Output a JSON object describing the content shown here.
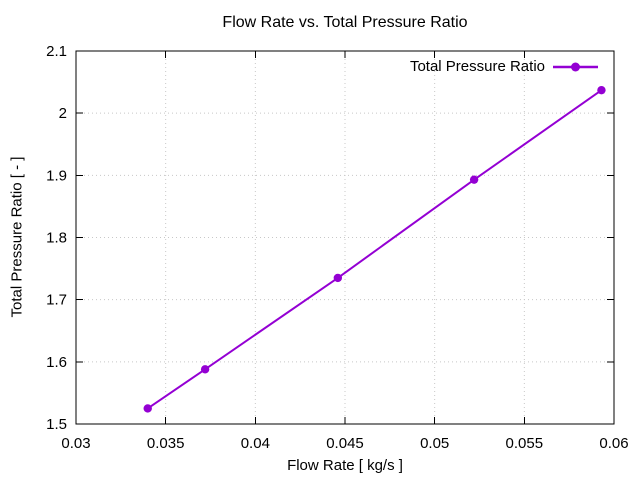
{
  "chart_data": {
    "type": "line",
    "title": "Flow Rate vs. Total Pressure Ratio",
    "xlabel": "Flow Rate [ kg/s ]",
    "ylabel": "Total Pressure Ratio [ - ]",
    "xlim": [
      0.03,
      0.06
    ],
    "ylim": [
      1.5,
      2.1
    ],
    "xticks": [
      0.03,
      0.035,
      0.04,
      0.045,
      0.05,
      0.055,
      0.06
    ],
    "xtick_labels": [
      "0.03",
      "0.035",
      "0.04",
      "0.045",
      "0.05",
      "0.055",
      "0.06"
    ],
    "yticks": [
      1.5,
      1.6,
      1.7,
      1.8,
      1.9,
      2.0,
      2.1
    ],
    "ytick_labels": [
      "1.5",
      "1.6",
      "1.7",
      "1.8",
      "1.9",
      "2",
      "2.1"
    ],
    "grid": true,
    "legend": {
      "position": "top-right-inside",
      "entries": [
        "Total Pressure Ratio"
      ]
    },
    "series": [
      {
        "name": "Total Pressure Ratio",
        "color": "#9400d3",
        "marker": "filled-circle",
        "x": [
          0.034,
          0.0372,
          0.0446,
          0.0522,
          0.0593
        ],
        "y": [
          1.525,
          1.588,
          1.735,
          1.893,
          2.037
        ]
      }
    ],
    "colors": {
      "background": "#ffffff",
      "axis": "#000000",
      "grid": "#c8c8c8",
      "text": "#000000"
    }
  }
}
